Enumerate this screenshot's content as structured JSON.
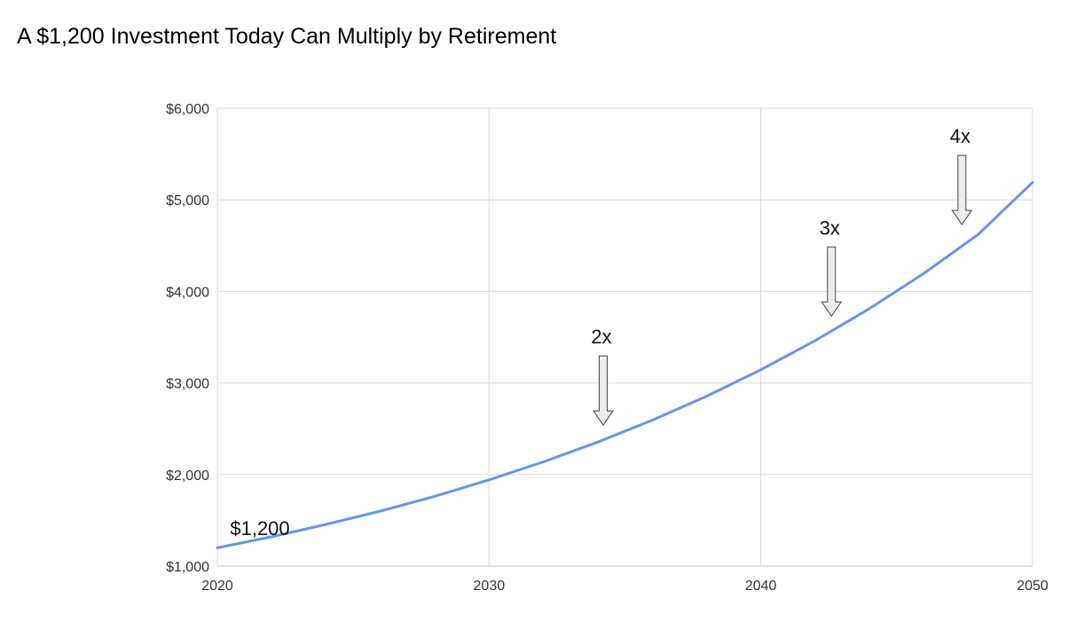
{
  "chart_data": {
    "type": "line",
    "title": "A $1,200 Investment Today Can Multiply by Retirement",
    "xlabel": "",
    "ylabel": "",
    "xlim": [
      2020,
      2050
    ],
    "ylim": [
      1000,
      6000
    ],
    "x_ticks": [
      2020,
      2030,
      2040,
      2050
    ],
    "x_tick_labels": [
      "2020",
      "2030",
      "2040",
      "2050"
    ],
    "y_ticks": [
      1000,
      2000,
      3000,
      4000,
      5000,
      6000
    ],
    "y_tick_labels": [
      "$1,000",
      "$2,000",
      "$3,000",
      "$4,000",
      "$5,000",
      "$6,000"
    ],
    "grid": true,
    "series": [
      {
        "color": "#6495ED",
        "x": [
          2020,
          2022,
          2024,
          2026,
          2028,
          2030,
          2032,
          2034,
          2036,
          2038,
          2040,
          2042,
          2044,
          2046,
          2048,
          2050
        ],
        "y": [
          1200,
          1321,
          1455,
          1601,
          1763,
          1942,
          2139,
          2355,
          2593,
          2855,
          3144,
          3462,
          3812,
          4197,
          4622,
          5190
        ]
      }
    ],
    "annotations": [
      {
        "text": "$1,200",
        "x": 2021.6,
        "y": 1340,
        "arrow": false
      },
      {
        "text": "2x",
        "x": 2034.2,
        "y": 2540,
        "arrow": true
      },
      {
        "text": "3x",
        "x": 2042.6,
        "y": 3730,
        "arrow": true
      },
      {
        "text": "4x",
        "x": 2047.4,
        "y": 4730,
        "arrow": true
      }
    ]
  }
}
